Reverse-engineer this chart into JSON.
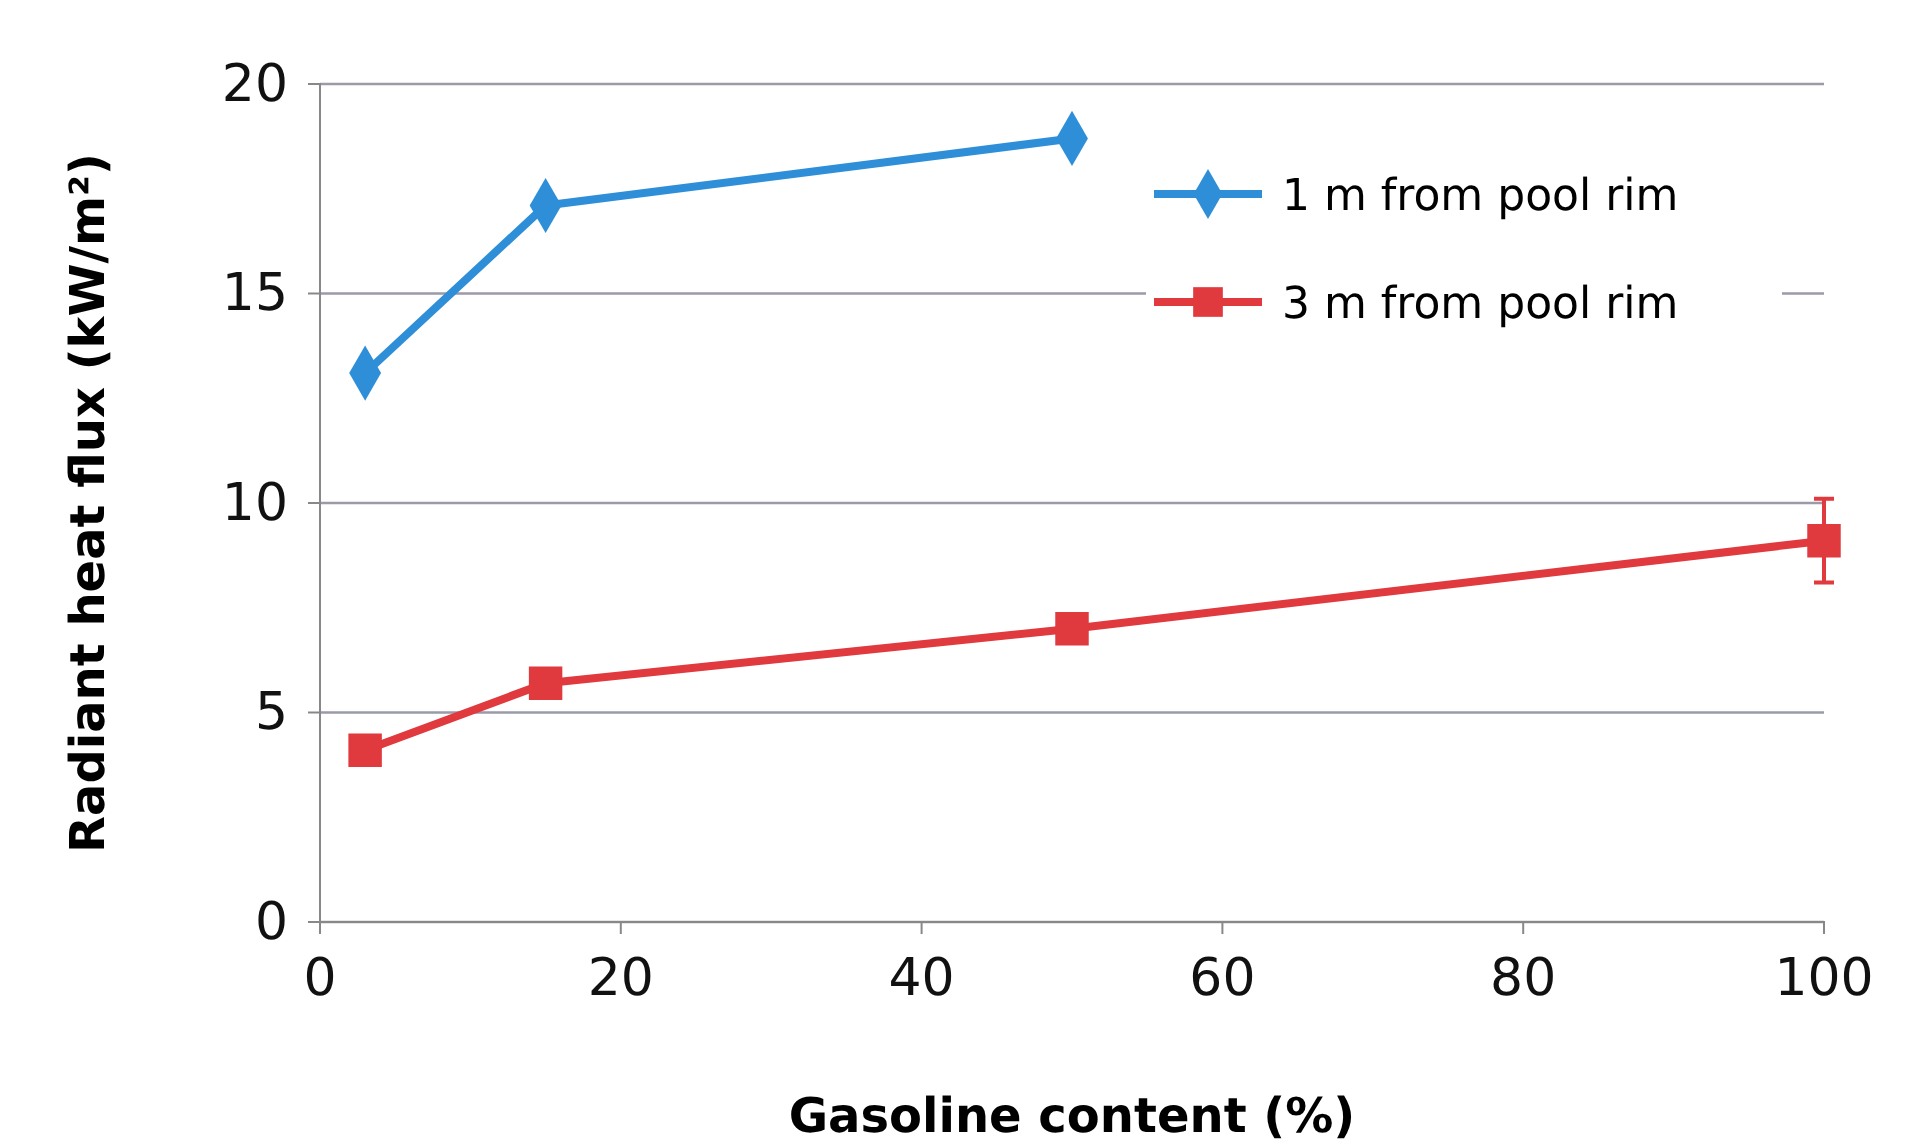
{
  "chart_data": {
    "type": "line",
    "xlabel": "Gasoline content (%)",
    "ylabel": "Radiant heat flux (kW/m²)",
    "xlim": [
      0,
      100
    ],
    "xticks": [
      0,
      20,
      40,
      60,
      80,
      100
    ],
    "ylim": [
      0,
      20
    ],
    "yticks": [
      0,
      5,
      10,
      15,
      20
    ],
    "grid": "y",
    "legend": "top right",
    "series": [
      {
        "name": "1 m from pool rim",
        "color": "#2e8fd8",
        "marker": "diamond",
        "x": [
          3,
          15,
          50
        ],
        "values": [
          13.1,
          17.1,
          18.7
        ]
      },
      {
        "name": "3 m from pool rim",
        "color": "#e0393e",
        "marker": "square",
        "x": [
          3,
          15,
          50,
          100
        ],
        "values": [
          4.1,
          5.7,
          7.0,
          9.1
        ],
        "errors": [
          null,
          null,
          null,
          1.0
        ]
      }
    ]
  }
}
